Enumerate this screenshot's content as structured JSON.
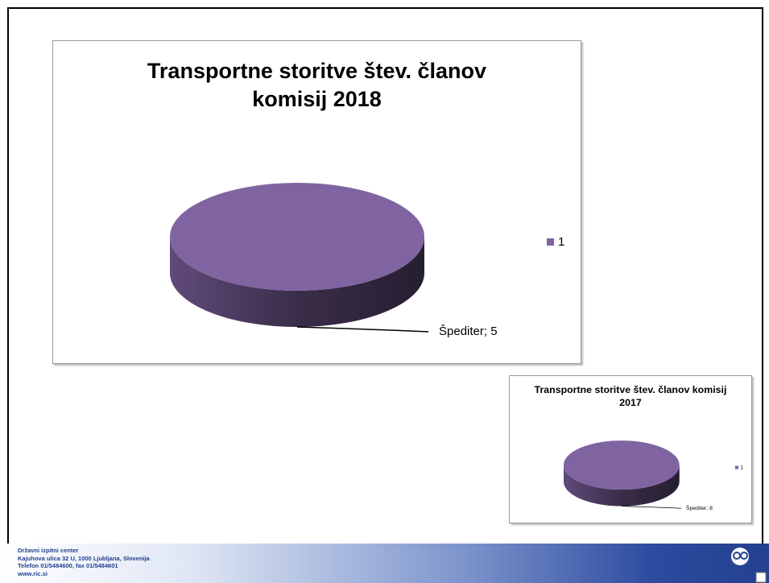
{
  "chart_data": [
    {
      "type": "pie",
      "title": "Transportne storitve štev. članov komisij  2018",
      "categories": [
        "Špediter"
      ],
      "series": [
        {
          "name": "1",
          "color": "#8064a2",
          "values": [
            5
          ],
          "value_labels": [
            "Špediter; 5"
          ]
        }
      ],
      "legend": "right"
    },
    {
      "type": "pie",
      "title": "Transportne storitve štev. članov komisij  2017",
      "categories": [
        "Špediter"
      ],
      "series": [
        {
          "name": "1",
          "color": "#8064a2",
          "values": [
            8
          ],
          "value_labels": [
            "Špediter; 8"
          ]
        }
      ],
      "legend": "right"
    }
  ],
  "footer": {
    "lines": [
      "Državni izpitni center",
      "Kajuhova ulica 32 U, 1000 Ljubljana, Slovenija",
      "Telefon 01/5484600, fax 01/5484601",
      "www.ric.si"
    ]
  }
}
